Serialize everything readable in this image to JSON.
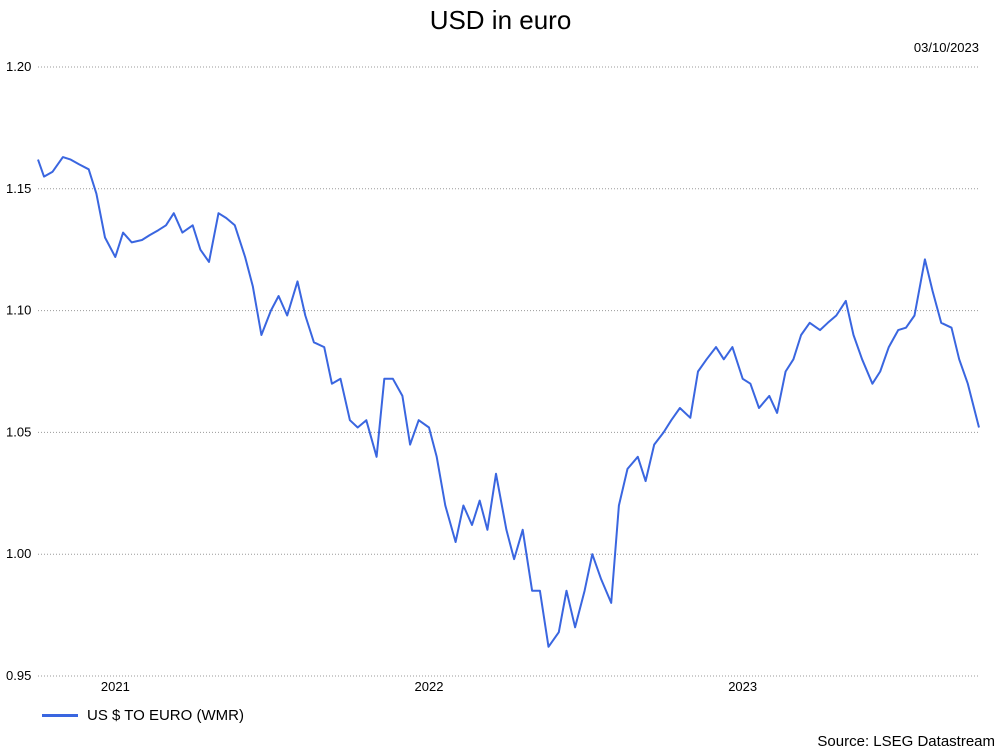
{
  "chart_data": {
    "type": "line",
    "title": "USD in euro",
    "date_label": "03/10/2023",
    "source": "Source: LSEG Datastream",
    "ylim": [
      0.95,
      1.2
    ],
    "y_ticks": [
      "1.20",
      "1.15",
      "1.10",
      "1.05",
      "1.00",
      "0.95"
    ],
    "y_tick_values": [
      1.2,
      1.15,
      1.1,
      1.05,
      1.0,
      0.95
    ],
    "x_ticks": [
      "2021",
      "2022",
      "2023"
    ],
    "x_tick_values": [
      "2021-01-01",
      "2022-01-01",
      "2023-01-01"
    ],
    "xlim": [
      "2020-10-03",
      "2023-10-03"
    ],
    "grid": "horizontal dotted",
    "legend_position": "bottom-left",
    "series": [
      {
        "name": "US $ TO EURO (WMR)",
        "color": "#3a66e0",
        "x": [
          "2020-10-03",
          "2020-10-10",
          "2020-10-20",
          "2020-11-01",
          "2020-11-10",
          "2020-11-20",
          "2020-12-01",
          "2020-12-10",
          "2020-12-20",
          "2021-01-01",
          "2021-01-10",
          "2021-01-20",
          "2021-02-01",
          "2021-02-10",
          "2021-02-20",
          "2021-03-01",
          "2021-03-10",
          "2021-03-20",
          "2021-04-01",
          "2021-04-10",
          "2021-04-20",
          "2021-05-01",
          "2021-05-10",
          "2021-05-20",
          "2021-06-01",
          "2021-06-10",
          "2021-06-20",
          "2021-07-01",
          "2021-07-10",
          "2021-07-20",
          "2021-08-01",
          "2021-08-10",
          "2021-08-20",
          "2021-09-01",
          "2021-09-10",
          "2021-09-20",
          "2021-10-01",
          "2021-10-10",
          "2021-10-20",
          "2021-11-01",
          "2021-11-10",
          "2021-11-20",
          "2021-12-01",
          "2021-12-10",
          "2021-12-20",
          "2022-01-01",
          "2022-01-10",
          "2022-01-20",
          "2022-02-01",
          "2022-02-10",
          "2022-02-20",
          "2022-03-01",
          "2022-03-10",
          "2022-03-20",
          "2022-04-01",
          "2022-04-10",
          "2022-04-20",
          "2022-05-01",
          "2022-05-10",
          "2022-05-20",
          "2022-06-01",
          "2022-06-10",
          "2022-06-20",
          "2022-07-01",
          "2022-07-10",
          "2022-07-20",
          "2022-08-01",
          "2022-08-10",
          "2022-08-20",
          "2022-09-01",
          "2022-09-10",
          "2022-09-20",
          "2022-10-01",
          "2022-10-10",
          "2022-10-20",
          "2022-11-01",
          "2022-11-10",
          "2022-11-20",
          "2022-12-01",
          "2022-12-10",
          "2022-12-20",
          "2023-01-01",
          "2023-01-10",
          "2023-01-20",
          "2023-02-01",
          "2023-02-10",
          "2023-02-20",
          "2023-03-01",
          "2023-03-10",
          "2023-03-20",
          "2023-04-01",
          "2023-04-10",
          "2023-04-20",
          "2023-05-01",
          "2023-05-10",
          "2023-05-20",
          "2023-06-01",
          "2023-06-10",
          "2023-06-20",
          "2023-07-01",
          "2023-07-10",
          "2023-07-20",
          "2023-08-01",
          "2023-08-10",
          "2023-08-20",
          "2023-09-01",
          "2023-09-10",
          "2023-09-20",
          "2023-10-03"
        ],
        "values": [
          1.162,
          1.155,
          1.157,
          1.163,
          1.162,
          1.16,
          1.158,
          1.148,
          1.13,
          1.122,
          1.132,
          1.128,
          1.129,
          1.131,
          1.133,
          1.135,
          1.14,
          1.132,
          1.135,
          1.125,
          1.12,
          1.14,
          1.138,
          1.135,
          1.122,
          1.11,
          1.09,
          1.1,
          1.106,
          1.098,
          1.112,
          1.098,
          1.087,
          1.085,
          1.07,
          1.072,
          1.055,
          1.052,
          1.055,
          1.04,
          1.072,
          1.072,
          1.065,
          1.045,
          1.055,
          1.052,
          1.04,
          1.02,
          1.005,
          1.02,
          1.012,
          1.022,
          1.01,
          1.033,
          1.01,
          0.998,
          1.01,
          0.985,
          0.985,
          0.962,
          0.968,
          0.985,
          0.97,
          0.985,
          1.0,
          0.99,
          0.98,
          1.02,
          1.035,
          1.04,
          1.03,
          1.045,
          1.05,
          1.055,
          1.06,
          1.056,
          1.075,
          1.08,
          1.085,
          1.08,
          1.085,
          1.072,
          1.07,
          1.06,
          1.065,
          1.058,
          1.075,
          1.08,
          1.09,
          1.095,
          1.092,
          1.095,
          1.098,
          1.104,
          1.09,
          1.08,
          1.07,
          1.075,
          1.085,
          1.092,
          1.093,
          1.098,
          1.121,
          1.108,
          1.095,
          1.093,
          1.08,
          1.07,
          1.052
        ]
      }
    ]
  }
}
